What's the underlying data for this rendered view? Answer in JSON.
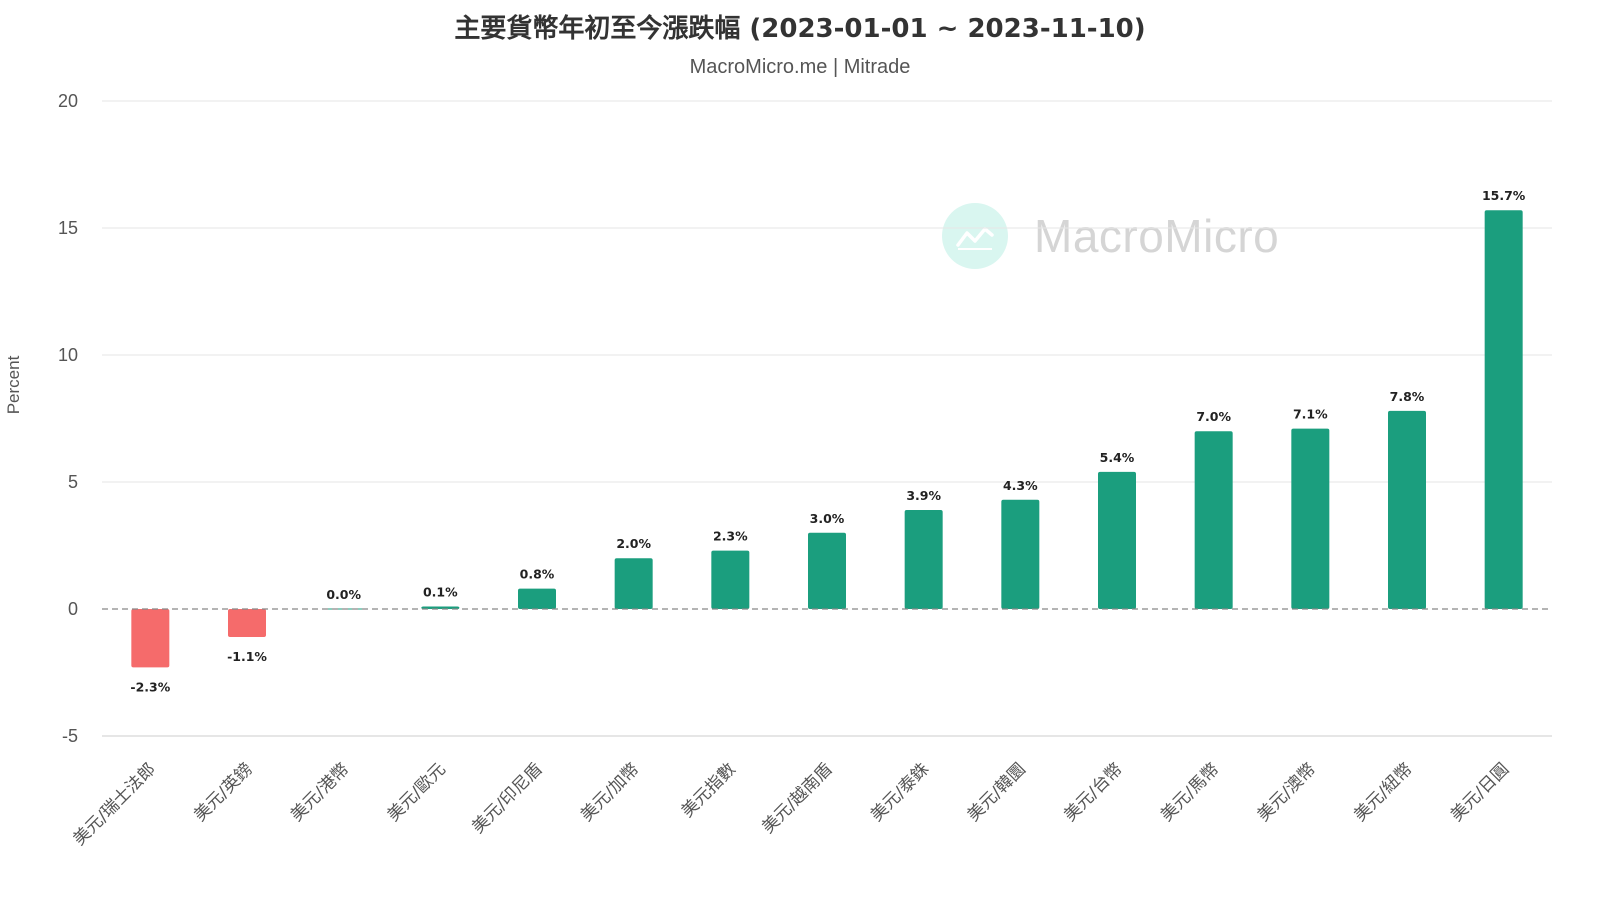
{
  "chart_data": {
    "type": "bar",
    "title": "主要貨幣年初至今漲跌幅 (2023-01-01 ~ 2023-11-10)",
    "subtitle": "MacroMicro.me | Mitrade",
    "ylabel": "Percent",
    "xlabel": "",
    "ylim": [
      -5,
      20
    ],
    "yticks": [
      -5,
      0,
      5,
      10,
      15,
      20
    ],
    "grid": true,
    "zero_line": "dashed",
    "categories": [
      "美元/瑞士法郎",
      "美元/英鎊",
      "美元/港幣",
      "美元/歐元",
      "美元/印尼盾",
      "美元/加幣",
      "美元指數",
      "美元/越南盾",
      "美元/泰銖",
      "美元/韓圜",
      "美元/台幣",
      "美元/馬幣",
      "美元/澳幣",
      "美元/紐幣",
      "美元/日圓"
    ],
    "values": [
      -2.3,
      -1.1,
      0.0,
      0.1,
      0.8,
      2.0,
      2.3,
      3.0,
      3.9,
      4.3,
      5.4,
      7.0,
      7.1,
      7.8,
      15.7
    ],
    "labels": [
      "-2.3%",
      "-1.1%",
      "0.0%",
      "0.1%",
      "0.8%",
      "2.0%",
      "2.3%",
      "3.0%",
      "3.9%",
      "4.3%",
      "5.4%",
      "7.0%",
      "7.1%",
      "7.8%",
      "15.7%"
    ],
    "colors": {
      "positive": "#1b9e7e",
      "negative": "#f56b6b",
      "grid": "#e6e6e6",
      "zero": "#888888"
    }
  },
  "watermark": {
    "text": "MacroMicro",
    "icon": "macromicro-logo-icon"
  }
}
